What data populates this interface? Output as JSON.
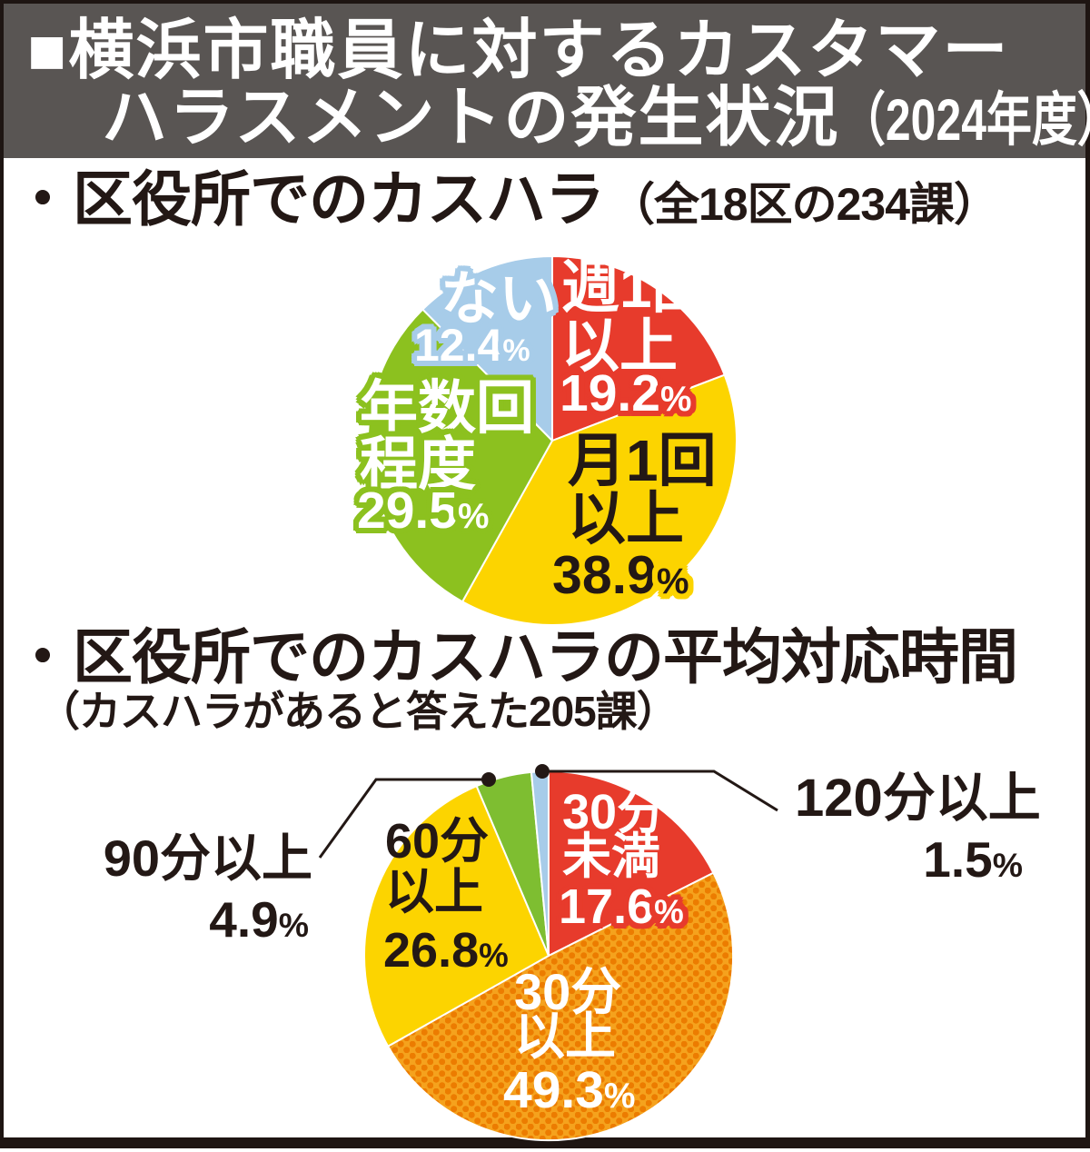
{
  "percent_sign": "%",
  "header": {
    "title_line1": "■横浜市職員に対するカスタマー",
    "title_line2": "ハラスメントの発生状況",
    "title_year": "（2024年度）",
    "bg_color": "#595553",
    "text_color": "#ffffff"
  },
  "chart_data": [
    {
      "type": "pie",
      "bullet": "・",
      "title": "区役所でのカスハラ",
      "annotation": "（全18区の234課）",
      "start_angle_deg": 0,
      "direction": "clockwise",
      "radius_px": 203,
      "slice_border_color": "#ffffff",
      "segments": [
        {
          "label": "週1回以上",
          "lines": "週1回\n以上",
          "value": 19.2,
          "color": "#e73b2c"
        },
        {
          "label": "月1回以上",
          "lines": "月1回\n以上",
          "value": 38.9,
          "color": "#fcd400"
        },
        {
          "label": "年数回程度",
          "lines": "年数回\n程度",
          "value": 29.5,
          "color": "#8cc11f"
        },
        {
          "label": "ない",
          "lines": "ない",
          "value": 12.4,
          "color": "#a7cce9"
        }
      ]
    },
    {
      "type": "pie",
      "bullet": "・",
      "title": "区役所でのカスハラの平均対応時間",
      "annotation": "（カスハラがあると答えた205課）",
      "start_angle_deg": 0,
      "direction": "clockwise",
      "radius_px": 203,
      "slice_border_color": "#ffffff",
      "segments": [
        {
          "label": "30分未満",
          "lines": "30分\n未満",
          "value": 17.6,
          "color": "#e73b2c"
        },
        {
          "label": "30分以上",
          "lines": "30分\n以上",
          "value": 49.3,
          "color": "#f5a21d",
          "pattern": "dots",
          "dot_color": "#ec7c00"
        },
        {
          "label": "60分以上",
          "lines": "60分\n以上",
          "value": 26.8,
          "color": "#fcd400"
        },
        {
          "label": "90分以上",
          "lines": "90分以上",
          "value": 4.9,
          "color": "#7ebe31"
        },
        {
          "label": "120分以上",
          "lines": "120分以上",
          "value": 1.5,
          "color": "#a7cce9"
        }
      ]
    }
  ]
}
